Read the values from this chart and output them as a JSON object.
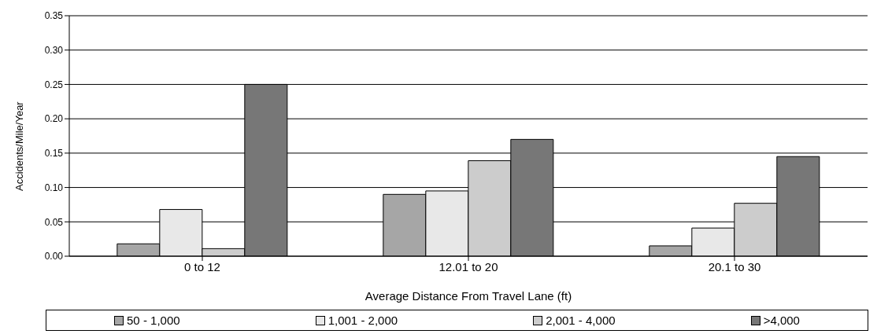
{
  "chart_data": {
    "type": "bar",
    "xlabel": "Average Distance From Travel Lane (ft)",
    "ylabel": "Accidents/Mile/Year",
    "categories": [
      "0 to 12",
      "12.01 to 20",
      "20.1 to 30"
    ],
    "series": [
      {
        "name": "50 - 1,000",
        "color": "#a6a6a6",
        "values": [
          0.018,
          0.09,
          0.015
        ]
      },
      {
        "name": "1,001 - 2,000",
        "color": "#e8e8e8",
        "values": [
          0.068,
          0.095,
          0.041
        ]
      },
      {
        "name": "2,001 - 4,000",
        "color": "#cccccc",
        "values": [
          0.011,
          0.139,
          0.077
        ]
      },
      {
        "name": ">4,000",
        "color": "#777777",
        "values": [
          0.25,
          0.17,
          0.145
        ]
      }
    ],
    "ylim": [
      0,
      0.35
    ],
    "yticks": [
      {
        "value": 0,
        "label": "0.00"
      },
      {
        "value": 0.05,
        "label": "0.05"
      },
      {
        "value": 0.1,
        "label": "0.10"
      },
      {
        "value": 0.15,
        "label": "0.15"
      },
      {
        "value": 0.2,
        "label": "0.20"
      },
      {
        "value": 0.25,
        "label": "0.25"
      },
      {
        "value": 0.3,
        "label": "0.30"
      },
      {
        "value": 0.35,
        "label": "0.35"
      }
    ],
    "grid": "y",
    "legend": "bottom"
  }
}
